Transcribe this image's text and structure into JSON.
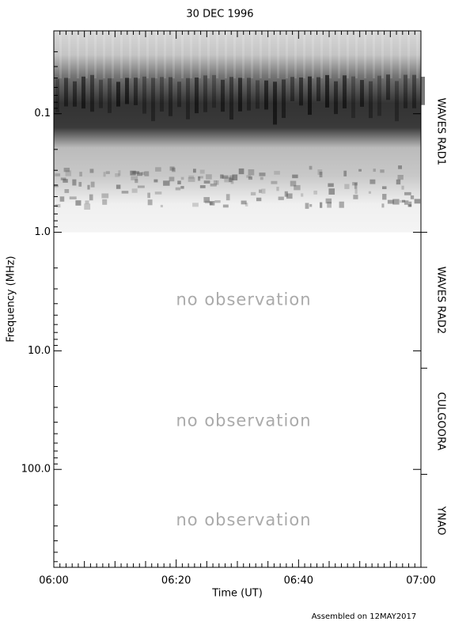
{
  "chart_data": {
    "type": "spectrogram",
    "title": "30 DEC 1996",
    "xlabel": "Time (UT)",
    "ylabel": "Frequency (MHz)",
    "xlim": [
      0,
      60
    ],
    "xticks": [
      {
        "value": 0,
        "label": "06:00"
      },
      {
        "value": 20,
        "label": "06:20"
      },
      {
        "value": 40,
        "label": "06:40"
      },
      {
        "value": 60,
        "label": "07:00"
      }
    ],
    "ylim": [
      0.02,
      670
    ],
    "log_y": true,
    "yticks": [
      0.1,
      {
        "value": 1,
        "label": "1.0"
      },
      {
        "value": 10,
        "label": "10.0"
      },
      {
        "value": 100,
        "label": "100.0"
      }
    ],
    "instruments": [
      {
        "name": "WAVES RAD1",
        "range": [
          0.02,
          1
        ]
      },
      {
        "name": "WAVES RAD2",
        "range": [
          1,
          14
        ],
        "note": "no observation"
      },
      {
        "name": "CULGOORA",
        "range": [
          14,
          110
        ],
        "note": "no observation"
      },
      {
        "name": "YNAO",
        "range": [
          110,
          670
        ],
        "note": "no observation"
      }
    ],
    "footer": "Assembled on 12MAY2017"
  }
}
